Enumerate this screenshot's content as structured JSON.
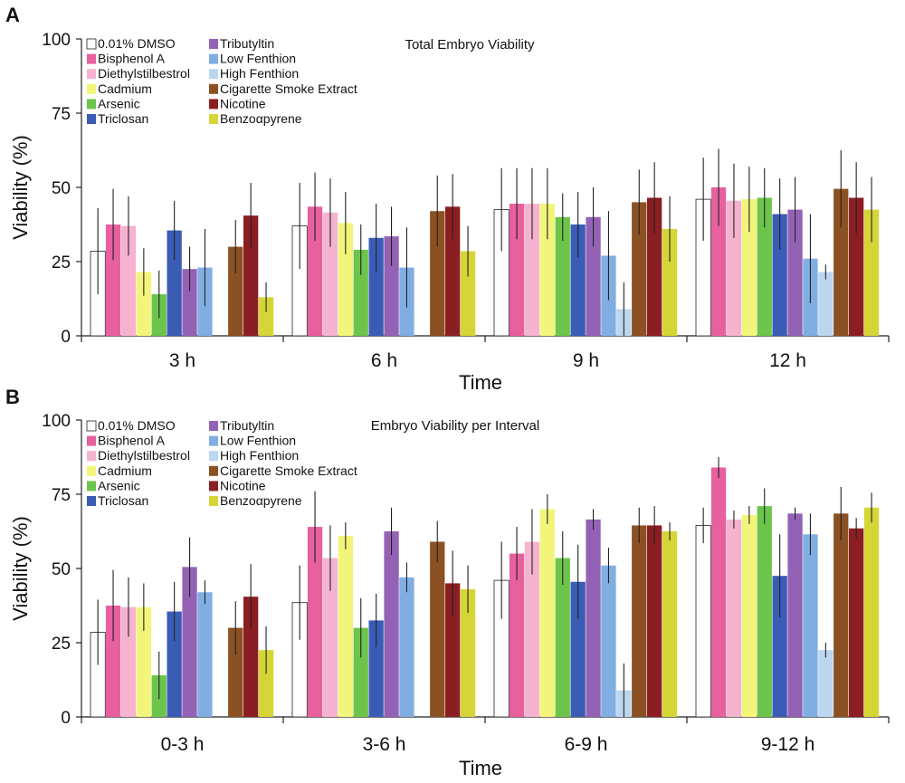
{
  "chart_data": [
    {
      "type": "bar",
      "panel_label": "A",
      "title": "Total Embryo Viability",
      "xlabel": "Time",
      "ylabel": "Viability (%)",
      "ylim": [
        0,
        100
      ],
      "yticks": [
        "0",
        "25",
        "50",
        "75",
        "100"
      ],
      "categories": [
        "3 h",
        "6 h",
        "9 h",
        "12 h"
      ],
      "legend_position": "top-left",
      "series": [
        {
          "name": "0.01% DMSO",
          "color": "#ffffff",
          "values": [
            28.5,
            37,
            42.5,
            46
          ],
          "errors": [
            14.5,
            14.5,
            14,
            14
          ]
        },
        {
          "name": "Bisphenol A",
          "color": "#e8609e",
          "values": [
            37.5,
            43.5,
            44.5,
            50
          ],
          "errors": [
            12,
            11.5,
            12,
            13
          ]
        },
        {
          "name": "Diethylstilbestrol",
          "color": "#f5b3d0",
          "values": [
            37,
            41.5,
            44.5,
            45.5
          ],
          "errors": [
            10,
            11.5,
            12,
            12.5
          ]
        },
        {
          "name": "Cadmium",
          "color": "#f3f57a",
          "values": [
            21.5,
            38,
            44.5,
            46
          ],
          "errors": [
            8,
            10.5,
            12,
            11
          ]
        },
        {
          "name": "Arsenic",
          "color": "#6dc44b",
          "values": [
            14,
            29,
            40,
            46.5
          ],
          "errors": [
            8,
            8.5,
            8,
            10
          ]
        },
        {
          "name": "Triclosan",
          "color": "#3a5cb5",
          "values": [
            35.5,
            33,
            37.5,
            41
          ],
          "errors": [
            10,
            11.5,
            11,
            12
          ]
        },
        {
          "name": "Tributyltin",
          "color": "#9462b5",
          "values": [
            22.5,
            33.5,
            40,
            42.5
          ],
          "errors": [
            7.5,
            10,
            10,
            11
          ]
        },
        {
          "name": "Low Fenthion",
          "color": "#80aee3",
          "values": [
            23,
            23,
            27,
            26
          ],
          "errors": [
            13,
            13.5,
            15,
            15
          ]
        },
        {
          "name": "High Fenthion",
          "color": "#bcd6f0",
          "values": [
            0,
            0,
            9,
            21.5
          ],
          "errors": [
            0,
            0,
            9,
            2.5
          ]
        },
        {
          "name": "Cigarette Smoke Extract",
          "color": "#8b5122",
          "values": [
            30,
            42,
            45,
            49.5
          ],
          "errors": [
            9,
            12,
            11,
            13
          ]
        },
        {
          "name": "Nicotine",
          "color": "#8b1e22",
          "values": [
            40.5,
            43.5,
            46.5,
            46.5
          ],
          "errors": [
            11,
            11,
            12,
            12
          ]
        },
        {
          "name": "Benzoαpyrene",
          "color": "#d6d536",
          "values": [
            13,
            28.5,
            36,
            42.5
          ],
          "errors": [
            5,
            8.5,
            11,
            11
          ]
        }
      ]
    },
    {
      "type": "bar",
      "panel_label": "B",
      "title": "Embryo Viability per Interval",
      "xlabel": "Time",
      "ylabel": "Viability (%)",
      "ylim": [
        0,
        100
      ],
      "yticks": [
        "0",
        "25",
        "50",
        "75",
        "100"
      ],
      "categories": [
        "0-3 h",
        "3-6 h",
        "6-9 h",
        "9-12 h"
      ],
      "legend_position": "top-left",
      "series": [
        {
          "name": "0.01% DMSO",
          "color": "#ffffff",
          "values": [
            28.5,
            38.5,
            46,
            64.5
          ],
          "errors": [
            11,
            12.5,
            13,
            6
          ]
        },
        {
          "name": "Bisphenol A",
          "color": "#e8609e",
          "values": [
            37.5,
            64,
            55,
            84
          ],
          "errors": [
            12,
            12,
            9,
            3.5
          ]
        },
        {
          "name": "Diethylstilbestrol",
          "color": "#f5b3d0",
          "values": [
            37,
            53.5,
            59,
            66.5
          ],
          "errors": [
            10,
            11,
            11,
            3
          ]
        },
        {
          "name": "Cadmium",
          "color": "#f3f57a",
          "values": [
            37,
            61,
            70,
            68
          ],
          "errors": [
            8,
            4.5,
            5,
            3
          ]
        },
        {
          "name": "Arsenic",
          "color": "#6dc44b",
          "values": [
            14,
            30,
            53.5,
            71
          ],
          "errors": [
            8,
            10,
            9,
            6
          ]
        },
        {
          "name": "Triclosan",
          "color": "#3a5cb5",
          "values": [
            35.5,
            32.5,
            45.5,
            47.5
          ],
          "errors": [
            10,
            9,
            12.5,
            14
          ]
        },
        {
          "name": "Tributyltin",
          "color": "#9462b5",
          "values": [
            50.5,
            62.5,
            66.5,
            68.5
          ],
          "errors": [
            10,
            8,
            3.5,
            2
          ]
        },
        {
          "name": "Low Fenthion",
          "color": "#80aee3",
          "values": [
            42,
            47,
            51,
            61.5
          ],
          "errors": [
            4,
            5,
            6,
            7
          ]
        },
        {
          "name": "High Fenthion",
          "color": "#bcd6f0",
          "values": [
            0,
            0,
            9,
            22.5
          ],
          "errors": [
            0,
            0,
            9,
            2.5
          ]
        },
        {
          "name": "Cigarette Smoke Extract",
          "color": "#8b5122",
          "values": [
            30,
            59,
            64.5,
            68.5
          ],
          "errors": [
            9,
            7,
            6,
            9
          ]
        },
        {
          "name": "Nicotine",
          "color": "#8b1e22",
          "values": [
            40.5,
            45,
            64.5,
            63.5
          ],
          "errors": [
            11,
            11,
            6.5,
            3.5
          ]
        },
        {
          "name": "Benzoαpyrene",
          "color": "#d6d536",
          "values": [
            22.5,
            43,
            62.5,
            70.5
          ],
          "errors": [
            8,
            8,
            3,
            5
          ]
        }
      ]
    }
  ]
}
